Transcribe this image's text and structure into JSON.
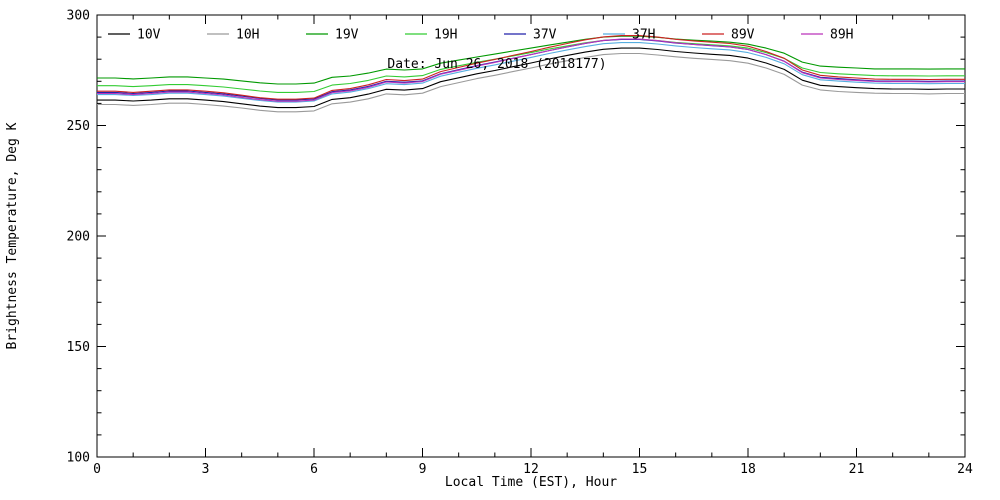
{
  "chart_data": {
    "type": "line",
    "title": "Date: Jun 26, 2018 (2018177)",
    "xlabel": "Local Time (EST), Hour",
    "ylabel": "Brightness Temperature, Deg K",
    "xlim": [
      0,
      24
    ],
    "ylim": [
      100,
      300
    ],
    "x_ticks": [
      0,
      3,
      6,
      9,
      12,
      15,
      18,
      21,
      24
    ],
    "x_minor_step": 1,
    "y_ticks": [
      100,
      150,
      200,
      250,
      300
    ],
    "y_minor_step": 10,
    "grid": false,
    "legend_position": "top-inside",
    "frame_color": "#000000",
    "x": [
      0,
      0.5,
      1,
      1.5,
      2,
      2.5,
      3,
      3.5,
      4,
      4.5,
      5,
      5.5,
      6,
      6.5,
      7,
      7.5,
      8,
      8.5,
      9,
      9.5,
      10,
      10.5,
      11,
      11.5,
      12,
      12.5,
      13,
      13.5,
      14,
      14.5,
      15,
      15.5,
      16,
      16.5,
      17,
      17.5,
      18,
      18.5,
      19,
      19.5,
      20,
      20.5,
      21,
      21.5,
      22,
      22.5,
      23,
      23.5,
      24
    ],
    "series": [
      {
        "name": "10V",
        "color": "#000000",
        "values": [
          261.5,
          261.5,
          261.1,
          261.5,
          262.1,
          262.1,
          261.5,
          260.8,
          259.8,
          258.8,
          258.1,
          258.1,
          258.6,
          261.8,
          262.6,
          264.2,
          266.4,
          266.0,
          266.7,
          269.8,
          271.6,
          273.4,
          274.9,
          276.6,
          278.3,
          280.1,
          281.7,
          283.2,
          284.5,
          285.0,
          285.0,
          284.4,
          283.5,
          282.8,
          282.2,
          281.7,
          280.5,
          278.3,
          275.4,
          270.5,
          268.2,
          267.6,
          267.1,
          266.7,
          266.5,
          266.5,
          266.4,
          266.5,
          266.5
        ]
      },
      {
        "name": "10H",
        "color": "#9a9a9a",
        "values": [
          259.5,
          259.5,
          259.1,
          259.5,
          260.1,
          260.1,
          259.5,
          258.8,
          257.9,
          256.9,
          256.2,
          256.2,
          256.6,
          259.8,
          260.6,
          262.1,
          264.3,
          263.9,
          264.6,
          267.6,
          269.4,
          271.2,
          272.7,
          274.4,
          276.0,
          277.8,
          279.3,
          280.8,
          282.1,
          282.6,
          282.6,
          281.9,
          281.1,
          280.4,
          279.9,
          279.3,
          278.2,
          276.0,
          273.1,
          268.3,
          266.1,
          265.4,
          265.0,
          264.6,
          264.5,
          264.5,
          264.3,
          264.5,
          264.5
        ]
      },
      {
        "name": "19V",
        "color": "#009900",
        "values": [
          271.5,
          271.5,
          271.1,
          271.5,
          272.0,
          272.0,
          271.5,
          271.0,
          270.2,
          269.3,
          268.8,
          268.8,
          269.2,
          271.8,
          272.4,
          273.7,
          275.5,
          275.1,
          275.6,
          278.2,
          279.6,
          281.0,
          282.3,
          283.7,
          285.0,
          286.4,
          287.7,
          289.0,
          290.0,
          290.4,
          290.4,
          289.9,
          289.1,
          288.6,
          288.2,
          287.7,
          286.8,
          285.0,
          282.7,
          278.7,
          276.9,
          276.4,
          276.0,
          275.6,
          275.6,
          275.6,
          275.5,
          275.6,
          275.6
        ]
      },
      {
        "name": "19H",
        "color": "#33cc33",
        "values": [
          268.0,
          268.0,
          267.6,
          268.0,
          268.5,
          268.5,
          268.0,
          267.4,
          266.5,
          265.6,
          265.0,
          265.0,
          265.4,
          268.3,
          269.0,
          270.4,
          272.4,
          272.0,
          272.6,
          275.4,
          277.0,
          278.6,
          280.0,
          281.5,
          283.0,
          284.6,
          286.0,
          287.4,
          288.5,
          289.0,
          289.0,
          288.4,
          287.6,
          287.0,
          286.5,
          286.0,
          285.0,
          283.0,
          280.4,
          276.0,
          274.0,
          273.4,
          273.0,
          272.6,
          272.5,
          272.5,
          272.4,
          272.5,
          272.5
        ]
      },
      {
        "name": "37V",
        "color": "#2222aa",
        "values": [
          265.0,
          265.0,
          264.5,
          265.0,
          265.6,
          265.6,
          265.0,
          264.3,
          263.3,
          262.3,
          261.6,
          261.6,
          262.0,
          265.3,
          266.1,
          267.7,
          270.0,
          269.6,
          270.2,
          273.4,
          275.3,
          277.1,
          278.7,
          280.4,
          282.1,
          283.9,
          285.5,
          287.1,
          288.4,
          288.9,
          288.9,
          288.3,
          287.3,
          286.7,
          286.1,
          285.5,
          284.4,
          282.1,
          279.1,
          274.1,
          271.8,
          271.2,
          270.7,
          270.2,
          270.1,
          270.1,
          270.0,
          270.1,
          270.1
        ]
      },
      {
        "name": "37H",
        "color": "#56aee0",
        "values": [
          264.0,
          264.0,
          263.6,
          264.0,
          264.6,
          264.6,
          264.0,
          263.3,
          262.3,
          261.3,
          260.6,
          260.6,
          261.1,
          264.3,
          265.1,
          266.7,
          268.9,
          268.5,
          269.2,
          272.3,
          274.1,
          275.9,
          277.4,
          279.1,
          280.8,
          282.6,
          284.2,
          285.7,
          287.0,
          287.5,
          287.5,
          286.9,
          286.0,
          285.3,
          284.7,
          284.2,
          283.0,
          280.8,
          277.9,
          273.0,
          270.7,
          270.1,
          269.6,
          269.2,
          269.0,
          269.0,
          268.9,
          269.0,
          269.0
        ]
      },
      {
        "name": "89V",
        "color": "#cc2222",
        "values": [
          265.5,
          265.5,
          265.0,
          265.5,
          266.1,
          266.1,
          265.5,
          264.8,
          263.7,
          262.6,
          261.9,
          261.9,
          262.4,
          265.9,
          266.7,
          268.4,
          270.8,
          270.3,
          271.0,
          274.4,
          276.3,
          278.2,
          279.9,
          281.7,
          283.5,
          285.4,
          287.1,
          288.8,
          290.1,
          290.7,
          290.7,
          290.0,
          289.0,
          288.3,
          287.7,
          287.1,
          285.9,
          283.5,
          280.4,
          275.1,
          272.7,
          272.0,
          271.5,
          271.0,
          270.9,
          270.9,
          270.8,
          270.9,
          270.9
        ]
      },
      {
        "name": "89H",
        "color": "#bb33bb",
        "values": [
          264.5,
          264.5,
          264.0,
          264.5,
          265.1,
          265.1,
          264.5,
          263.8,
          262.7,
          261.7,
          261.0,
          261.0,
          261.5,
          264.9,
          265.7,
          267.3,
          269.7,
          269.2,
          269.9,
          273.2,
          275.0,
          276.9,
          278.5,
          280.3,
          282.1,
          283.9,
          285.6,
          287.2,
          288.5,
          289.1,
          289.1,
          288.4,
          287.4,
          286.7,
          286.2,
          285.6,
          284.4,
          282.1,
          279.0,
          273.9,
          271.5,
          270.8,
          270.4,
          269.9,
          269.8,
          269.8,
          269.7,
          269.8,
          269.8
        ]
      }
    ]
  }
}
